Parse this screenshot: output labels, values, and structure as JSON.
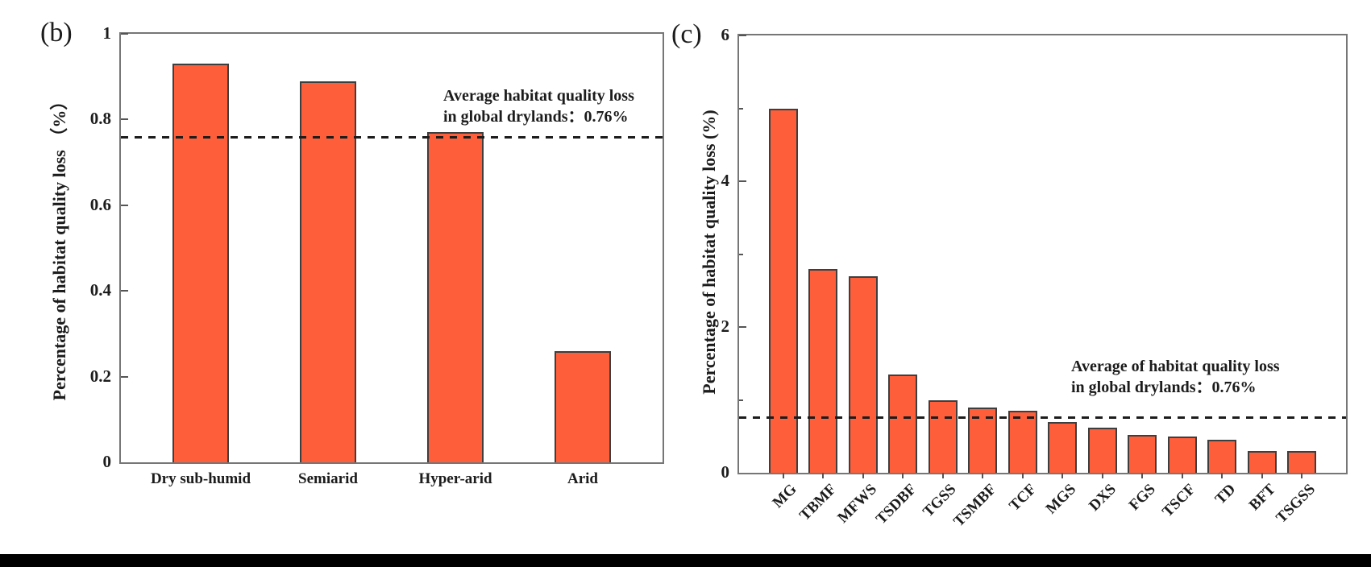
{
  "figure": {
    "background": "#ffffff",
    "bottom_bar_color": "#000000",
    "axis_color": "#767676",
    "text_color": "#1c1c1c"
  },
  "chart_data": [
    {
      "id": "b",
      "type": "bar",
      "panel_label": "(b)",
      "ylabel": "Percentage of habitat quality loss （%）",
      "categories": [
        "Dry sub-humid",
        "Semiarid",
        "Hyper-arid",
        "Arid"
      ],
      "values": [
        0.93,
        0.89,
        0.77,
        0.26
      ],
      "ylim": [
        0,
        1
      ],
      "yticks": [
        0,
        0.2,
        0.4,
        0.6,
        0.8,
        1
      ],
      "ytick_labels": [
        "0",
        "0.2",
        "0.4",
        "0.6",
        "0.8",
        "1"
      ],
      "minor_yticks": [],
      "grid": false,
      "legend": "none",
      "bar_color": "#FF5E3A",
      "bar_border_color": "#3e3e3e",
      "x_tick_rotation": 0,
      "reference_line": {
        "value": 0.76,
        "style": "dashed",
        "color": "#1c1c1c",
        "label_line1": "Average habitat quality loss",
        "label_line2": "in global drylands：0.76%"
      }
    },
    {
      "id": "c",
      "type": "bar",
      "panel_label": "(c)",
      "ylabel": "Percentage of habitat quality loss (%)",
      "categories": [
        "MG",
        "TBMF",
        "MFWS",
        "TSDBF",
        "TGSS",
        "TSMBF",
        "TCF",
        "MGS",
        "DXS",
        "FGS",
        "TSCF",
        "TD",
        "BFT",
        "TSGSS"
      ],
      "values": [
        5.0,
        2.8,
        2.7,
        1.35,
        1.0,
        0.9,
        0.85,
        0.7,
        0.62,
        0.52,
        0.5,
        0.45,
        0.3,
        0.3
      ],
      "ylim": [
        0,
        6
      ],
      "yticks": [
        0,
        2,
        4,
        6
      ],
      "ytick_labels": [
        "0",
        "2",
        "4",
        "6"
      ],
      "minor_yticks": [
        1,
        3,
        5
      ],
      "grid": false,
      "legend": "none",
      "bar_color": "#FF5E3A",
      "bar_border_color": "#3e3e3e",
      "x_tick_rotation": 45,
      "reference_line": {
        "value": 0.76,
        "style": "dashed",
        "color": "#1c1c1c",
        "label_line1": "Average of habitat quality loss",
        "label_line2": "in global drylands：0.76%"
      }
    }
  ]
}
